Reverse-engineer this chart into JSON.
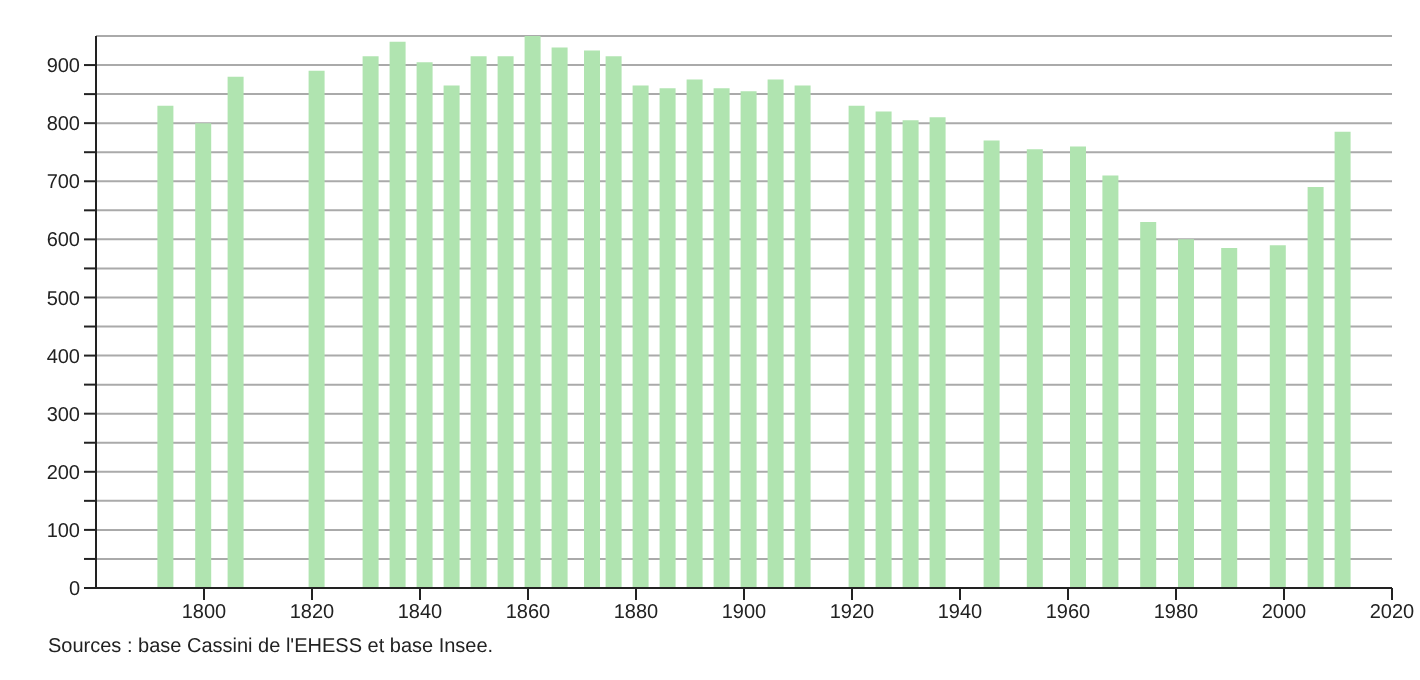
{
  "chart_data": {
    "type": "bar",
    "x": [
      1793,
      1800,
      1806,
      1821,
      1831,
      1836,
      1841,
      1846,
      1851,
      1856,
      1861,
      1866,
      1872,
      1876,
      1881,
      1886,
      1891,
      1896,
      1901,
      1906,
      1911,
      1921,
      1926,
      1931,
      1936,
      1946,
      1954,
      1962,
      1968,
      1975,
      1982,
      1990,
      1999,
      2006,
      2011
    ],
    "values": [
      830,
      800,
      880,
      890,
      915,
      940,
      905,
      865,
      915,
      915,
      950,
      930,
      925,
      915,
      865,
      860,
      875,
      860,
      855,
      875,
      865,
      830,
      820,
      805,
      810,
      770,
      755,
      760,
      710,
      630,
      600,
      585,
      590,
      690,
      785
    ],
    "color": "#b0e4b0",
    "xlim": [
      1780,
      2020
    ],
    "xticks": [
      1800,
      1820,
      1840,
      1860,
      1880,
      1900,
      1920,
      1940,
      1960,
      1980,
      2000,
      2020
    ],
    "ylim": [
      0,
      950
    ],
    "yticks": [
      0,
      {
        "value": 50,
        "label": null
      },
      100,
      {
        "value": 150,
        "label": null
      },
      200,
      {
        "value": 250,
        "label": null
      },
      300,
      {
        "value": 350,
        "label": null
      },
      400,
      {
        "value": 450,
        "label": null
      },
      500,
      {
        "value": 550,
        "label": null
      },
      600,
      {
        "value": 650,
        "label": null
      },
      700,
      {
        "value": 750,
        "label": null
      },
      800,
      {
        "value": 850,
        "label": null
      },
      900
    ],
    "grid": "y",
    "annotations": [
      "Sources : base Cassini de l'EHESS et base Insee."
    ]
  }
}
